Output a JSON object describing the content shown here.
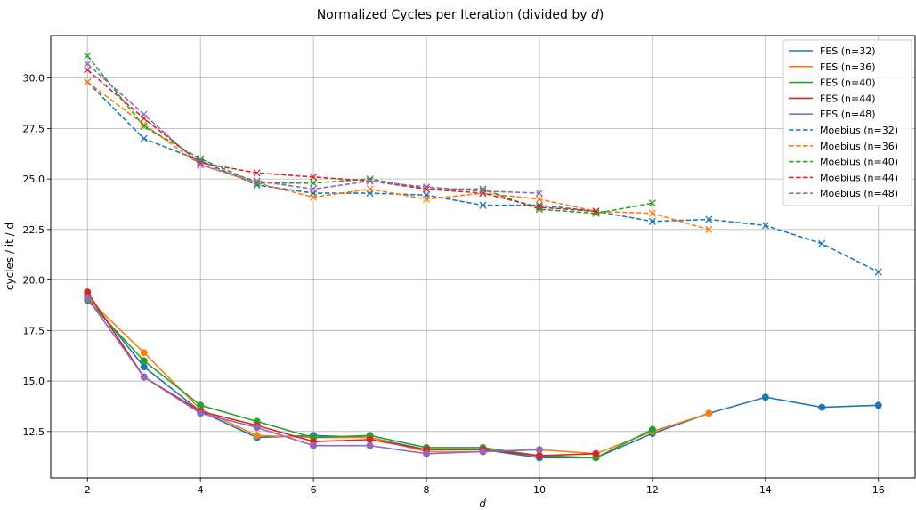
{
  "chart_data": {
    "type": "line",
    "title_prefix": "Normalized Cycles per Iteration (divided by ",
    "title_var": "d",
    "title_suffix": ")",
    "xlabel": "d",
    "ylabel": "cycles / it / d",
    "xlim": [
      1.35,
      16.65
    ],
    "ylim": [
      10.2,
      32.1
    ],
    "xticks": [
      2,
      4,
      6,
      8,
      10,
      12,
      14,
      16
    ],
    "yticks": [
      12.5,
      15.0,
      17.5,
      20.0,
      22.5,
      25.0,
      27.5,
      30.0
    ],
    "ytick_labels": [
      "12.5",
      "15.0",
      "17.5",
      "20.0",
      "22.5",
      "25.0",
      "27.5",
      "30.0"
    ],
    "grid": true,
    "legend_position": "top-right",
    "series": [
      {
        "name": "FES (n=32)",
        "color": "#1f77b4",
        "style": "solid",
        "marker": "circle",
        "x": [
          2,
          3,
          4,
          5,
          6,
          7,
          8,
          9,
          10,
          11,
          12,
          13,
          14,
          15,
          16
        ],
        "y": [
          19.2,
          15.7,
          13.5,
          12.2,
          12.3,
          12.2,
          11.6,
          11.6,
          11.2,
          11.2,
          12.4,
          13.4,
          14.2,
          13.7,
          13.8
        ]
      },
      {
        "name": "FES (n=36)",
        "color": "#ff7f0e",
        "style": "solid",
        "marker": "circle",
        "x": [
          2,
          3,
          4,
          5,
          6,
          7,
          8,
          9,
          10,
          11,
          12,
          13
        ],
        "y": [
          19.1,
          16.4,
          13.6,
          12.3,
          12.2,
          12.2,
          11.5,
          11.5,
          11.6,
          11.4,
          12.5,
          13.4
        ]
      },
      {
        "name": "FES (n=40)",
        "color": "#2ca02c",
        "style": "solid",
        "marker": "circle",
        "x": [
          2,
          3,
          4,
          5,
          6,
          7,
          8,
          9,
          10,
          11,
          12
        ],
        "y": [
          19.0,
          16.0,
          13.8,
          13.0,
          12.2,
          12.3,
          11.7,
          11.7,
          11.3,
          11.2,
          12.6
        ]
      },
      {
        "name": "FES (n=44)",
        "color": "#d62728",
        "style": "solid",
        "marker": "circle",
        "x": [
          2,
          3,
          4,
          5,
          6,
          7,
          8,
          9,
          10,
          11
        ],
        "y": [
          19.4,
          15.2,
          13.5,
          12.8,
          12.0,
          12.1,
          11.6,
          11.6,
          11.3,
          11.4
        ]
      },
      {
        "name": "FES (n=48)",
        "color": "#9467bd",
        "style": "solid",
        "marker": "circle",
        "x": [
          2,
          3,
          4,
          5,
          6,
          7,
          8,
          9,
          10
        ],
        "y": [
          19.1,
          15.2,
          13.4,
          12.7,
          11.8,
          11.8,
          11.4,
          11.5,
          11.6
        ]
      },
      {
        "name": "Moebius (n=32)",
        "color": "#1f77b4",
        "style": "dashed",
        "marker": "x",
        "x": [
          2,
          3,
          4,
          5,
          6,
          7,
          8,
          9,
          10,
          11,
          12,
          13,
          14,
          15,
          16
        ],
        "y": [
          29.8,
          27.0,
          25.9,
          24.7,
          24.3,
          24.3,
          24.2,
          23.7,
          23.7,
          23.4,
          22.9,
          23.0,
          22.7,
          21.8,
          20.4
        ]
      },
      {
        "name": "Moebius (n=36)",
        "color": "#ff7f0e",
        "style": "dashed",
        "marker": "x",
        "x": [
          2,
          3,
          4,
          5,
          6,
          7,
          8,
          9,
          10,
          11,
          12,
          13
        ],
        "y": [
          29.8,
          27.7,
          25.7,
          24.8,
          24.1,
          24.5,
          24.0,
          24.3,
          24.0,
          23.4,
          23.3,
          22.5
        ]
      },
      {
        "name": "Moebius (n=40)",
        "color": "#2ca02c",
        "style": "dashed",
        "marker": "x",
        "x": [
          2,
          3,
          4,
          5,
          6,
          7,
          8,
          9,
          10,
          11,
          12
        ],
        "y": [
          31.1,
          27.6,
          26.0,
          24.8,
          24.8,
          25.0,
          24.5,
          24.5,
          23.5,
          23.3,
          23.8
        ]
      },
      {
        "name": "Moebius (n=44)",
        "color": "#d62728",
        "style": "dashed",
        "marker": "x",
        "x": [
          2,
          3,
          4,
          5,
          6,
          7,
          8,
          9,
          10,
          11
        ],
        "y": [
          30.4,
          28.0,
          25.8,
          25.3,
          25.1,
          24.9,
          24.5,
          24.3,
          23.6,
          23.4
        ]
      },
      {
        "name": "Moebius (n=48)",
        "color": "#9467bd",
        "style": "dashed",
        "marker": "x",
        "x": [
          2,
          3,
          4,
          5,
          6,
          7,
          8,
          9,
          10
        ],
        "y": [
          30.7,
          28.2,
          25.7,
          24.9,
          24.5,
          24.9,
          24.6,
          24.4,
          24.3
        ]
      }
    ]
  }
}
